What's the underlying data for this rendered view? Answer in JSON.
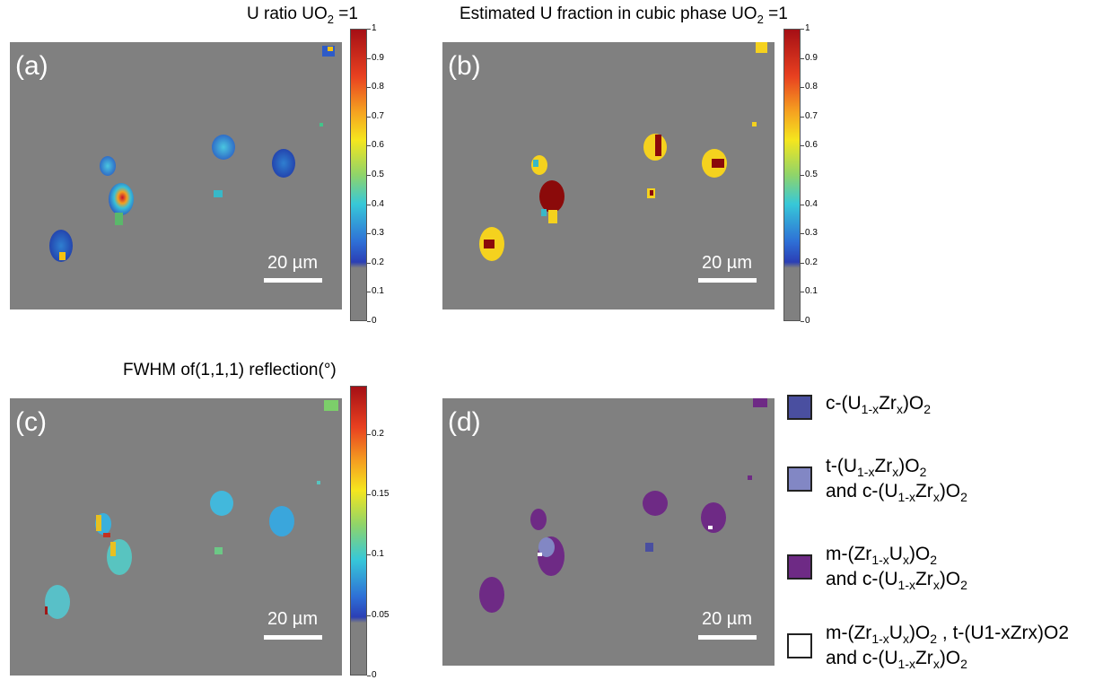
{
  "panels": {
    "a": {
      "label": "(a)",
      "title_pre": "U ratio UO",
      "title_sub": "2",
      "title_post": " =1",
      "scalebar": "20 µm"
    },
    "b": {
      "label": "(b)",
      "title_pre": "Estimated U fraction in cubic phase UO",
      "title_sub": "2",
      "title_post": " =1",
      "scalebar": "20 µm"
    },
    "c": {
      "label": "(c)",
      "title": "FWHM of(1,1,1) reflection(°)",
      "scalebar": "20 µm"
    },
    "d": {
      "label": "(d)",
      "scalebar": "20 µm"
    }
  },
  "colorbars": {
    "a": {
      "ticks": [
        "1",
        "0.9",
        "0.8",
        "0.7",
        "0.6",
        "0.5",
        "0.4",
        "0.3",
        "0.2",
        "0.1",
        "0"
      ],
      "range": [
        0,
        1
      ]
    },
    "b": {
      "ticks": [
        "1",
        "0.9",
        "0.8",
        "0.7",
        "0.6",
        "0.5",
        "0.4",
        "0.3",
        "0.2",
        "0.1",
        "0"
      ],
      "range": [
        0,
        1
      ]
    },
    "c": {
      "ticks": [
        "0.2",
        "0.15",
        "0.1",
        "0.05",
        "0"
      ],
      "range": [
        0,
        0.24
      ]
    }
  },
  "legend": [
    {
      "color": "#4a4fa0",
      "lines": [
        [
          "c-(U",
          "1-x",
          "Zr",
          "x",
          ")O",
          "2",
          ""
        ]
      ]
    },
    {
      "color": "#8287c4",
      "lines": [
        [
          "t-(U",
          "1-x",
          "Zr",
          "x",
          ")O",
          "2",
          ""
        ],
        [
          "and c-(U",
          "1-x",
          "Zr",
          "x",
          ")O",
          "2",
          ""
        ]
      ]
    },
    {
      "color": "#6e2a85",
      "lines": [
        [
          "m-(Zr",
          "1-x",
          "U",
          "x",
          ")O",
          "2",
          ""
        ],
        [
          "and c-(U",
          "1-x",
          "Zr",
          "x",
          ")O",
          "2",
          ""
        ]
      ]
    },
    {
      "color": "#ffffff",
      "lines": [
        [
          "m-(Zr",
          "1-x",
          "U",
          "x",
          ")O",
          "2",
          " , t-(U1-xZrx)O2"
        ],
        [
          "and c-(U",
          "1-x",
          "Zr",
          "x",
          ")O",
          "2",
          ""
        ]
      ]
    }
  ],
  "colors": {
    "background": "#808080",
    "jet_low": "#2b3fb5",
    "jet_mid": "#37c8d8",
    "jet_high": "#a50f15",
    "cubic_yellow": "#f5d21e",
    "cubic_red": "#8b0a0a",
    "purple": "#6e2a85"
  },
  "chart_data": {
    "type": "heatmap",
    "description_note": "Four phase/composition maps of the same region with grains; colorbar ranges in data units",
    "a": {
      "title": "U ratio UO2 =1",
      "range": [
        0,
        1
      ]
    },
    "b": {
      "title": "Estimated U fraction in cubic phase UO2 =1",
      "range": [
        0,
        1
      ]
    },
    "c": {
      "title": "FWHM of(1,1,1) reflection(°)",
      "range": [
        0,
        0.24
      ]
    },
    "d": {
      "legend": [
        "c-(U1-xZrx)O2",
        "t-(U1-xZrx)O2 and c-(U1-xZrx)O2",
        "m-(Zr1-xUx)O2 and c-(U1-xZrx)O2",
        "m-(Zr1-xUx)O2 , t-(U1-xZrx)O2 and c-(U1-xZrx)O2"
      ]
    }
  }
}
